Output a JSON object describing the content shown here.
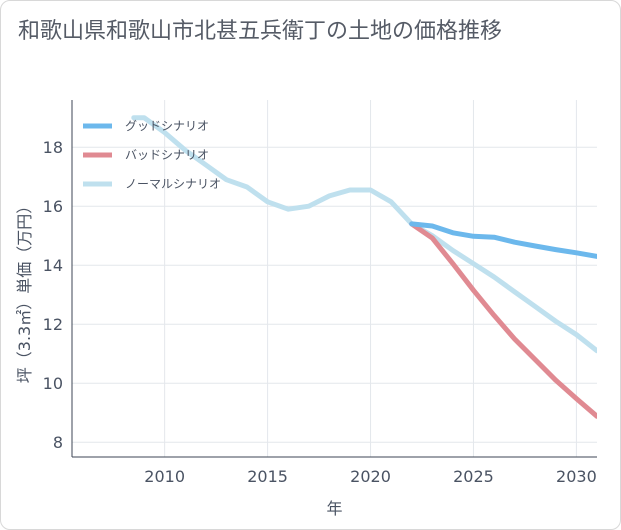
{
  "title": "和歌山県和歌山市北甚五兵衛丁の土地の価格推移",
  "chart_data": {
    "type": "line",
    "xlabel": "年",
    "ylabel": "坪（3.3㎡）単価（万円）",
    "xlim": [
      2005.5,
      2031
    ],
    "ylim": [
      7.5,
      19.6
    ],
    "xticks": [
      2010,
      2015,
      2020,
      2025,
      2030
    ],
    "yticks": [
      8,
      10,
      12,
      14,
      16,
      18
    ],
    "grid": true,
    "legend_position": "top-left",
    "series": [
      {
        "name": "グッドシナリオ",
        "color": "#6cb8ec",
        "x": [
          2022,
          2023,
          2024,
          2025,
          2026,
          2027,
          2028,
          2029,
          2030,
          2031
        ],
        "y": [
          15.4,
          15.33,
          15.1,
          14.98,
          14.95,
          14.78,
          14.65,
          14.53,
          14.42,
          14.3
        ]
      },
      {
        "name": "バッドシナリオ",
        "color": "#e08a92",
        "x": [
          2022,
          2023,
          2024,
          2025,
          2026,
          2027,
          2028,
          2029,
          2030,
          2031
        ],
        "y": [
          15.4,
          14.92,
          14.05,
          13.15,
          12.3,
          11.5,
          10.8,
          10.1,
          9.48,
          8.88
        ]
      },
      {
        "name": "ノーマルシナリオ",
        "color": "#bfe0ee",
        "x": [
          2008.5,
          2009,
          2010,
          2011,
          2012,
          2013,
          2014,
          2015,
          2016,
          2017,
          2018,
          2019,
          2020,
          2021,
          2022,
          2023,
          2024,
          2025,
          2026,
          2027,
          2028,
          2029,
          2030,
          2031
        ],
        "y": [
          19.0,
          19.0,
          18.5,
          17.9,
          17.4,
          16.9,
          16.65,
          16.15,
          15.9,
          16.0,
          16.35,
          16.55,
          16.55,
          16.15,
          15.4,
          15.0,
          14.5,
          14.05,
          13.6,
          13.1,
          12.6,
          12.1,
          11.65,
          11.1
        ]
      }
    ]
  }
}
